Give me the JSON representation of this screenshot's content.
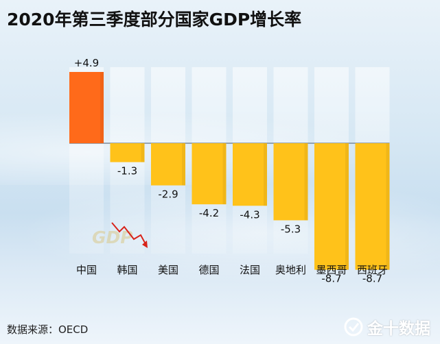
{
  "title": "2020年第三季度部分国家GDP增长率",
  "source": "数据来源：OECD",
  "watermark": {
    "brand_text": "金十数据",
    "gdp_text": "GDP"
  },
  "colors": {
    "highlight": "#ff6a1a",
    "bar": "#ffc21a",
    "text": "#111111"
  },
  "chart_data": {
    "type": "bar",
    "title": "2020年第三季度部分国家GDP增长率",
    "categories": [
      "中国",
      "韩国",
      "美国",
      "德国",
      "法国",
      "奥地利",
      "墨西哥",
      "西班牙"
    ],
    "values": [
      4.9,
      -1.3,
      -2.9,
      -4.2,
      -4.3,
      -5.3,
      -8.7,
      -8.7
    ],
    "labels": [
      "+4.9",
      "-1.3",
      "-2.9",
      "-4.2",
      "-4.3",
      "-5.3",
      "-8.7",
      "-8.7"
    ],
    "highlight_index": 0,
    "ylim": [
      -8.7,
      4.9
    ],
    "grid": false,
    "legend": "none"
  }
}
